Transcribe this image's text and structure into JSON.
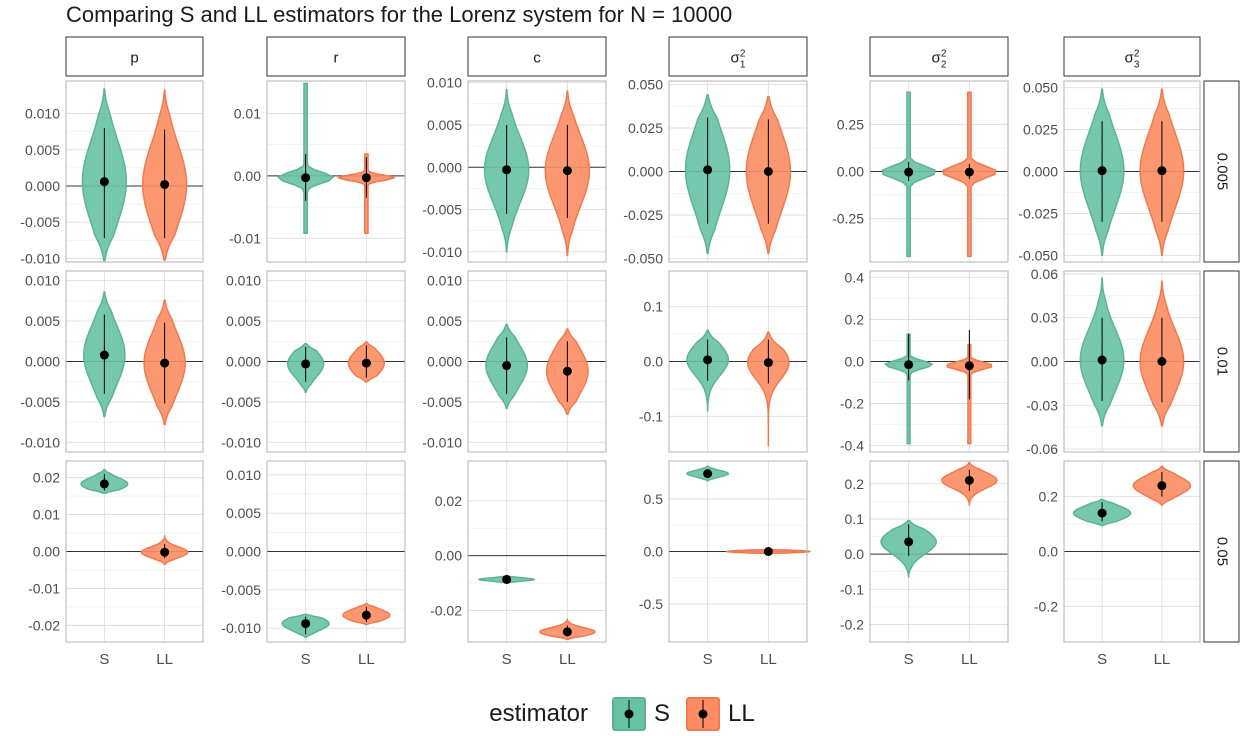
{
  "title": "Comparing S and LL estimators for the Lorenz system for N = 10000",
  "legend": {
    "title": "estimator",
    "entries": [
      "S",
      "LL"
    ]
  },
  "colors": {
    "S": "#66c2a5",
    "LL": "#fc8d62",
    "S_line": "#5fb394",
    "LL_line": "#f07a50",
    "point": "#000000",
    "zero_line": "#333333",
    "grid_major": "#dddddd",
    "grid_minor": "#eeeeee"
  },
  "chart_data": {
    "type": "violin",
    "x_categories": [
      "S",
      "LL"
    ],
    "columns": [
      {
        "label": "p"
      },
      {
        "label": "r"
      },
      {
        "label": "c"
      },
      {
        "label": "σ",
        "sub": "1",
        "sup": "2"
      },
      {
        "label": "σ",
        "sub": "2",
        "sup": "2"
      },
      {
        "label": "σ",
        "sub": "3",
        "sup": "2"
      }
    ],
    "rows": [
      "0.005",
      "0.01",
      "0.05"
    ],
    "panels": [
      [
        {
          "ylim": [
            -0.0105,
            0.0145
          ],
          "yticks": [
            -0.01,
            -0.005,
            0,
            0.005,
            0.01
          ],
          "ticklabels": [
            "-0.010",
            "-0.005",
            "0.000",
            "0.005",
            "0.010"
          ],
          "S": {
            "point": 0.0006,
            "lo": -0.0072,
            "hi": 0.008,
            "vmin": -0.0103,
            "vmax": 0.0134,
            "width": 0.32
          },
          "LL": {
            "point": 0.0002,
            "lo": -0.0072,
            "hi": 0.0078,
            "vmin": -0.0102,
            "vmax": 0.0132,
            "width": 0.32
          }
        },
        {
          "ylim": [
            -0.0138,
            0.0152
          ],
          "yticks": [
            -0.01,
            0,
            0.01
          ],
          "ticklabels": [
            "-0.01",
            "0.00",
            "0.01"
          ],
          "S": {
            "point": -0.0003,
            "lo": -0.004,
            "hi": 0.0035,
            "vmin": -0.0092,
            "vmax": 0.0148,
            "width": 0.4,
            "narrow": true
          },
          "LL": {
            "point": -0.0003,
            "lo": -0.0035,
            "hi": 0.003,
            "vmin": -0.0092,
            "vmax": 0.0035,
            "width": 0.4,
            "narrow": true
          }
        },
        {
          "ylim": [
            -0.0112,
            0.0102
          ],
          "yticks": [
            -0.01,
            -0.005,
            0,
            0.005,
            0.01
          ],
          "ticklabels": [
            "-0.010",
            "-0.005",
            "0.000",
            "0.005",
            "0.010"
          ],
          "S": {
            "point": -0.0003,
            "lo": -0.0055,
            "hi": 0.005,
            "vmin": -0.01,
            "vmax": 0.0092,
            "width": 0.32
          },
          "LL": {
            "point": -0.0004,
            "lo": -0.006,
            "hi": 0.005,
            "vmin": -0.0104,
            "vmax": 0.009,
            "width": 0.32
          }
        },
        {
          "ylim": [
            -0.052,
            0.052
          ],
          "yticks": [
            -0.05,
            -0.025,
            0,
            0.025,
            0.05
          ],
          "ticklabels": [
            "-0.050",
            "-0.025",
            "0.000",
            "0.025",
            "0.050"
          ],
          "S": {
            "point": 0.001,
            "lo": -0.03,
            "hi": 0.031,
            "vmin": -0.047,
            "vmax": 0.044,
            "width": 0.32
          },
          "LL": {
            "point": 0.0,
            "lo": -0.03,
            "hi": 0.03,
            "vmin": -0.047,
            "vmax": 0.043,
            "width": 0.32
          }
        },
        {
          "ylim": [
            -0.48,
            0.48
          ],
          "yticks": [
            -0.25,
            0,
            0.25
          ],
          "ticklabels": [
            "-0.25",
            "0.00",
            "0.25"
          ],
          "S": {
            "point": -0.003,
            "lo": -0.05,
            "hi": 0.05,
            "vmin": -0.45,
            "vmax": 0.42,
            "width": 0.4,
            "narrow": true
          },
          "LL": {
            "point": -0.003,
            "lo": -0.04,
            "hi": 0.04,
            "vmin": -0.45,
            "vmax": 0.42,
            "width": 0.4,
            "narrow": true
          }
        },
        {
          "ylim": [
            -0.054,
            0.054
          ],
          "yticks": [
            -0.05,
            -0.025,
            0,
            0.025,
            0.05
          ],
          "ticklabels": [
            "-0.050",
            "-0.025",
            "0.000",
            "0.025",
            "0.050"
          ],
          "S": {
            "point": 0.0005,
            "lo": -0.03,
            "hi": 0.03,
            "vmin": -0.05,
            "vmax": 0.049,
            "width": 0.32
          },
          "LL": {
            "point": 0.0005,
            "lo": -0.03,
            "hi": 0.03,
            "vmin": -0.05,
            "vmax": 0.049,
            "width": 0.32
          }
        }
      ],
      [
        {
          "ylim": [
            -0.0112,
            0.0112
          ],
          "yticks": [
            -0.01,
            -0.005,
            0,
            0.005,
            0.01
          ],
          "ticklabels": [
            "-0.010",
            "-0.005",
            "0.000",
            "0.005",
            "0.010"
          ],
          "S": {
            "point": 0.0008,
            "lo": -0.004,
            "hi": 0.0058,
            "vmin": -0.0068,
            "vmax": 0.0086,
            "width": 0.3
          },
          "LL": {
            "point": -0.0002,
            "lo": -0.0052,
            "hi": 0.0048,
            "vmin": -0.0078,
            "vmax": 0.0076,
            "width": 0.3
          }
        },
        {
          "ylim": [
            -0.0112,
            0.0112
          ],
          "yticks": [
            -0.01,
            -0.005,
            0,
            0.005,
            0.01
          ],
          "ticklabels": [
            "-0.010",
            "-0.005",
            "0.000",
            "0.005",
            "0.010"
          ],
          "S": {
            "point": -0.0003,
            "lo": -0.0025,
            "hi": 0.0018,
            "vmin": -0.0038,
            "vmax": 0.0022,
            "width": 0.26
          },
          "LL": {
            "point": -0.0002,
            "lo": -0.002,
            "hi": 0.002,
            "vmin": -0.0025,
            "vmax": 0.0024,
            "width": 0.26
          }
        },
        {
          "ylim": [
            -0.0112,
            0.0112
          ],
          "yticks": [
            -0.01,
            -0.005,
            0,
            0.005,
            0.01
          ],
          "ticklabels": [
            "-0.010",
            "-0.005",
            "0.000",
            "0.005",
            "0.010"
          ],
          "S": {
            "point": -0.0005,
            "lo": -0.004,
            "hi": 0.003,
            "vmin": -0.0058,
            "vmax": 0.0046,
            "width": 0.3
          },
          "LL": {
            "point": -0.0012,
            "lo": -0.005,
            "hi": 0.0025,
            "vmin": -0.0065,
            "vmax": 0.004,
            "width": 0.3
          }
        },
        {
          "ylim": [
            -0.165,
            0.165
          ],
          "yticks": [
            -0.1,
            0,
            0.1
          ],
          "ticklabels": [
            "-0.1",
            "0.0",
            "0.1"
          ],
          "S": {
            "point": 0.003,
            "lo": -0.035,
            "hi": 0.04,
            "vmin": -0.09,
            "vmax": 0.057,
            "width": 0.3
          },
          "LL": {
            "point": -0.002,
            "lo": -0.04,
            "hi": 0.04,
            "vmin": -0.155,
            "vmax": 0.053,
            "width": 0.3
          }
        },
        {
          "ylim": [
            -0.43,
            0.43
          ],
          "yticks": [
            -0.4,
            -0.2,
            0,
            0.2,
            0.4
          ],
          "ticklabels": [
            "-0.4",
            "-0.2",
            "0.0",
            "0.2",
            "0.4"
          ],
          "S": {
            "point": -0.015,
            "lo": -0.09,
            "hi": 0.13,
            "vmin": -0.39,
            "vmax": 0.13,
            "width": 0.34,
            "narrow": true
          },
          "LL": {
            "point": -0.02,
            "lo": -0.18,
            "hi": 0.15,
            "vmin": -0.39,
            "vmax": 0.08,
            "width": 0.34,
            "narrow": true
          }
        },
        {
          "ylim": [
            -0.062,
            0.062
          ],
          "yticks": [
            -0.06,
            -0.03,
            0,
            0.03,
            0.06
          ],
          "ticklabels": [
            "-0.06",
            "-0.03",
            "0.00",
            "0.03",
            "0.06"
          ],
          "S": {
            "point": 0.001,
            "lo": -0.027,
            "hi": 0.03,
            "vmin": -0.044,
            "vmax": 0.057,
            "width": 0.32
          },
          "LL": {
            "point": 0.0,
            "lo": -0.028,
            "hi": 0.03,
            "vmin": -0.044,
            "vmax": 0.055,
            "width": 0.32
          }
        }
      ],
      [
        {
          "ylim": [
            -0.0245,
            0.0245
          ],
          "yticks": [
            -0.02,
            -0.01,
            0,
            0.01,
            0.02
          ],
          "ticklabels": [
            "-0.02",
            "-0.01",
            "0.00",
            "0.01",
            "0.02"
          ],
          "S": {
            "point": 0.0183,
            "lo": 0.0165,
            "hi": 0.021,
            "vmin": 0.0158,
            "vmax": 0.0222,
            "width": 0.34
          },
          "LL": {
            "point": -0.0002,
            "lo": -0.0018,
            "hi": 0.002,
            "vmin": -0.0035,
            "vmax": 0.0042,
            "width": 0.34
          }
        },
        {
          "ylim": [
            -0.0118,
            0.0118
          ],
          "yticks": [
            -0.01,
            -0.005,
            0,
            0.005,
            0.01
          ],
          "ticklabels": [
            "-0.010",
            "-0.005",
            "0.000",
            "0.005",
            "0.010"
          ],
          "S": {
            "point": -0.0094,
            "lo": -0.0108,
            "hi": -0.0085,
            "vmin": -0.0112,
            "vmax": -0.0082,
            "width": 0.34
          },
          "LL": {
            "point": -0.0083,
            "lo": -0.0092,
            "hi": -0.0072,
            "vmin": -0.0095,
            "vmax": -0.0068,
            "width": 0.34
          }
        },
        {
          "ylim": [
            -0.0315,
            0.0345
          ],
          "yticks": [
            -0.02,
            0,
            0.02
          ],
          "ticklabels": [
            "-0.02",
            "0.00",
            "0.02"
          ],
          "S": {
            "point": -0.0087,
            "lo": -0.0095,
            "hi": -0.008,
            "vmin": -0.01,
            "vmax": -0.0073,
            "width": 0.4
          },
          "LL": {
            "point": -0.0278,
            "lo": -0.0295,
            "hi": -0.0255,
            "vmin": -0.0305,
            "vmax": -0.0232,
            "width": 0.4
          }
        },
        {
          "ylim": [
            -0.86,
            0.86
          ],
          "yticks": [
            -0.5,
            0,
            0.5
          ],
          "ticklabels": [
            "-0.5",
            "0.0",
            "0.5"
          ],
          "S": {
            "point": 0.74,
            "lo": 0.7,
            "hi": 0.78,
            "vmin": 0.67,
            "vmax": 0.81,
            "width": 0.3
          },
          "LL": {
            "point": 0.0,
            "lo": -0.015,
            "hi": 0.015,
            "vmin": -0.02,
            "vmax": 0.02,
            "width": 0.6
          }
        },
        {
          "ylim": [
            -0.25,
            0.265
          ],
          "yticks": [
            -0.2,
            -0.1,
            0,
            0.1,
            0.2
          ],
          "ticklabels": [
            "-0.2",
            "-0.1",
            "0.0",
            "0.1",
            "0.2"
          ],
          "S": {
            "point": 0.035,
            "lo": -0.005,
            "hi": 0.085,
            "vmin": -0.065,
            "vmax": 0.095,
            "width": 0.4
          },
          "LL": {
            "point": 0.21,
            "lo": 0.18,
            "hi": 0.24,
            "vmin": 0.14,
            "vmax": 0.26,
            "width": 0.4
          }
        },
        {
          "ylim": [
            -0.33,
            0.33
          ],
          "yticks": [
            -0.2,
            0,
            0.2
          ],
          "ticklabels": [
            "-0.2",
            "0.0",
            "0.2"
          ],
          "S": {
            "point": 0.14,
            "lo": 0.11,
            "hi": 0.18,
            "vmin": 0.095,
            "vmax": 0.19,
            "width": 0.42
          },
          "LL": {
            "point": 0.24,
            "lo": 0.2,
            "hi": 0.29,
            "vmin": 0.17,
            "vmax": 0.31,
            "width": 0.42
          }
        }
      ]
    ]
  }
}
